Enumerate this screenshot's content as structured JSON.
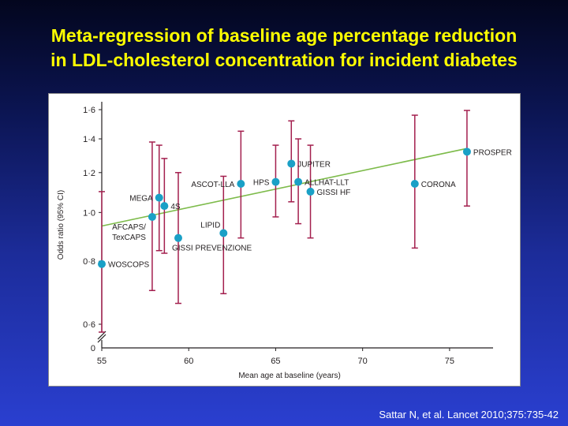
{
  "slide": {
    "title_line1": "Meta-regression of baseline age percentage reduction",
    "title_line2": "in LDL-cholesterol concentration for incident diabetes",
    "citation": "Sattar N, et al. Lancet 2010;375:735-42"
  },
  "colors": {
    "point": "#1aa0c6",
    "error_bar": "#a31f4e",
    "trend_line": "#7dbb4a",
    "axis": "#231f20",
    "title": "#ffff00"
  },
  "chart_data": {
    "type": "scatter",
    "xlabel": "Mean age at baseline (years)",
    "ylabel": "Odds ratio (95% CI)",
    "xlim": [
      55,
      76.5
    ],
    "ylim": [
      0.6,
      1.6
    ],
    "y_scale": "log",
    "y_axis_break": true,
    "x_ticks": [
      {
        "value": 55,
        "label": "55"
      },
      {
        "value": 60,
        "label": "60"
      },
      {
        "value": 65,
        "label": "65"
      },
      {
        "value": 70,
        "label": "70"
      },
      {
        "value": 75,
        "label": "75"
      }
    ],
    "y_ticks": [
      {
        "value": 0.6,
        "label": "0·6"
      },
      {
        "value": 0.8,
        "label": "0·8"
      },
      {
        "value": 1.0,
        "label": "1·0"
      },
      {
        "value": 1.2,
        "label": "1·2"
      },
      {
        "value": 1.4,
        "label": "1·4"
      },
      {
        "value": 1.6,
        "label": "1·6"
      }
    ],
    "y_zero_label": "0",
    "trend_line": {
      "x": [
        55,
        76
      ],
      "y": [
        0.94,
        1.34
      ]
    },
    "points": [
      {
        "label": "WOSCOPS",
        "label_extra": "",
        "x": 55.0,
        "y": 0.79,
        "lo": 0.56,
        "hi": 1.1,
        "label_pos": "right"
      },
      {
        "label": "AFCAPS/",
        "label_extra": "TexCAPS",
        "x": 57.9,
        "y": 0.98,
        "lo": 0.7,
        "hi": 1.38,
        "label_pos": "below-left"
      },
      {
        "label": "MEGA",
        "label_extra": "",
        "x": 58.3,
        "y": 1.07,
        "lo": 0.84,
        "hi": 1.36,
        "label_pos": "left"
      },
      {
        "label": "4S",
        "label_extra": "",
        "x": 58.6,
        "y": 1.03,
        "lo": 0.83,
        "hi": 1.28,
        "label_pos": "right"
      },
      {
        "label": "GISSI PREVENZIONE",
        "label_extra": "",
        "x": 59.4,
        "y": 0.89,
        "lo": 0.66,
        "hi": 1.2,
        "label_pos": "below-right"
      },
      {
        "label": "LIPID",
        "label_extra": "",
        "x": 62.0,
        "y": 0.91,
        "lo": 0.69,
        "hi": 1.18,
        "label_pos": "above-left"
      },
      {
        "label": "ASCOT-LLA",
        "label_extra": "",
        "x": 63.0,
        "y": 1.14,
        "lo": 0.89,
        "hi": 1.45,
        "label_pos": "left"
      },
      {
        "label": "HPS",
        "label_extra": "",
        "x": 65.0,
        "y": 1.15,
        "lo": 0.98,
        "hi": 1.36,
        "label_pos": "left"
      },
      {
        "label": "JUPITER",
        "label_extra": "",
        "x": 65.9,
        "y": 1.25,
        "lo": 1.05,
        "hi": 1.52,
        "label_pos": "right"
      },
      {
        "label": "ALLHAT-LLT",
        "label_extra": "",
        "x": 66.3,
        "y": 1.15,
        "lo": 0.95,
        "hi": 1.4,
        "label_pos": "right"
      },
      {
        "label": "GISSI HF",
        "label_extra": "",
        "x": 67.0,
        "y": 1.1,
        "lo": 0.89,
        "hi": 1.36,
        "label_pos": "right"
      },
      {
        "label": "CORONA",
        "label_extra": "",
        "x": 73.0,
        "y": 1.14,
        "lo": 0.85,
        "hi": 1.56,
        "label_pos": "right"
      },
      {
        "label": "PROSPER",
        "label_extra": "",
        "x": 76.0,
        "y": 1.32,
        "lo": 1.03,
        "hi": 1.68,
        "label_pos": "right"
      }
    ]
  }
}
